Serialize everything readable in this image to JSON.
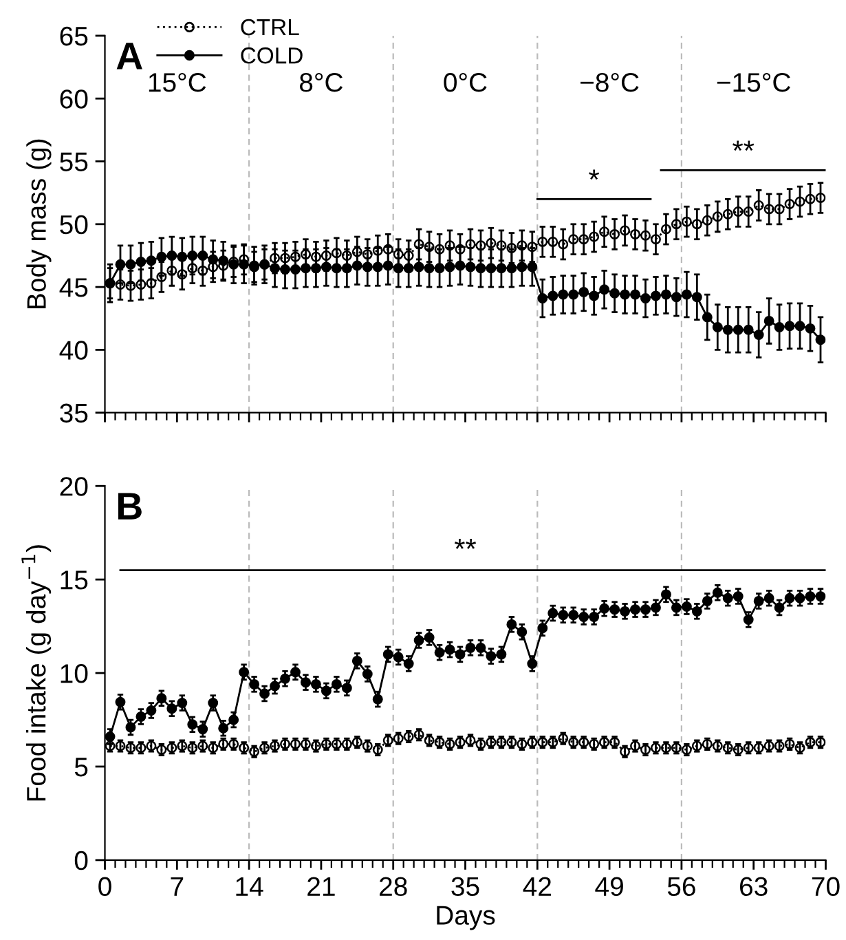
{
  "chart_data": [
    {
      "type": "line",
      "title": "A",
      "ylabel": "Body mass (g)",
      "xlim": [
        0,
        70
      ],
      "xticks": [
        0,
        7,
        14,
        21,
        28,
        35,
        42,
        49,
        56,
        63,
        70
      ],
      "ylim": [
        35,
        65
      ],
      "yticks": [
        35,
        40,
        45,
        50,
        55,
        60,
        65
      ],
      "tick_labels": "y",
      "grid": false,
      "legend": "top left",
      "x": [
        0.5,
        1.5,
        2.5,
        3.5,
        4.5,
        5.5,
        6.5,
        7.5,
        8.5,
        9.5,
        10.5,
        11.5,
        12.5,
        13.5,
        14.5,
        15.5,
        16.5,
        17.5,
        18.5,
        19.5,
        20.5,
        21.5,
        22.5,
        23.5,
        24.5,
        25.5,
        26.5,
        27.5,
        28.5,
        29.5,
        30.5,
        31.5,
        32.5,
        33.5,
        34.5,
        35.5,
        36.5,
        37.5,
        38.5,
        39.5,
        40.5,
        41.5,
        42.5,
        43.5,
        44.5,
        45.5,
        46.5,
        47.5,
        48.5,
        49.5,
        50.5,
        51.5,
        52.5,
        53.5,
        54.5,
        55.5,
        56.5,
        57.5,
        58.5,
        59.5,
        60.5,
        61.5,
        62.5,
        63.5,
        64.5,
        65.5,
        66.5,
        67.5,
        68.5,
        69.5
      ],
      "series": [
        {
          "name": "CTRL",
          "color": "#000000",
          "marker": "circle",
          "line_style": "dotted",
          "values": [
            45.3,
            45.2,
            45.1,
            45.2,
            45.3,
            45.8,
            46.3,
            46.0,
            46.5,
            46.3,
            46.6,
            46.7,
            47.0,
            47.2,
            46.6,
            46.8,
            47.3,
            47.3,
            47.4,
            47.6,
            47.4,
            47.5,
            47.7,
            47.5,
            47.8,
            47.6,
            47.9,
            48.0,
            47.6,
            47.5,
            48.4,
            48.2,
            48.0,
            48.3,
            48.0,
            48.4,
            48.3,
            48.5,
            48.3,
            48.1,
            48.3,
            48.2,
            48.6,
            48.6,
            48.4,
            48.8,
            48.8,
            49.0,
            49.4,
            49.2,
            49.5,
            49.2,
            49.1,
            48.8,
            49.6,
            50.0,
            50.2,
            50.0,
            50.3,
            50.6,
            50.8,
            51.0,
            51.0,
            51.5,
            51.2,
            51.2,
            51.6,
            51.8,
            52.0,
            52.1
          ],
          "errors": [
            1.2,
            1.2,
            1.2,
            1.2,
            1.2,
            1.2,
            1.2,
            1.2,
            1.2,
            1.2,
            1.2,
            1.2,
            1.2,
            1.2,
            1.2,
            1.2,
            1.2,
            1.2,
            1.2,
            1.2,
            1.2,
            1.2,
            1.2,
            1.2,
            1.2,
            1.2,
            1.2,
            1.2,
            1.2,
            1.2,
            1.2,
            1.2,
            1.2,
            1.2,
            1.2,
            1.2,
            1.2,
            1.2,
            1.2,
            1.2,
            1.2,
            1.2,
            1.2,
            1.2,
            1.2,
            1.2,
            1.2,
            1.2,
            1.2,
            1.2,
            1.2,
            1.2,
            1.2,
            1.2,
            1.2,
            1.2,
            1.2,
            1.2,
            1.2,
            1.2,
            1.2,
            1.2,
            1.2,
            1.2,
            1.2,
            1.2,
            1.2,
            1.2,
            1.2,
            1.2
          ]
        },
        {
          "name": "COLD",
          "color": "#000000",
          "marker": "circle",
          "line_style": "solid",
          "values": [
            45.3,
            46.8,
            46.8,
            47.0,
            47.1,
            47.4,
            47.5,
            47.4,
            47.5,
            47.5,
            47.2,
            47.1,
            46.8,
            46.8,
            46.7,
            46.8,
            46.5,
            46.4,
            46.4,
            46.5,
            46.5,
            46.6,
            46.5,
            46.5,
            46.7,
            46.6,
            46.6,
            46.7,
            46.5,
            46.5,
            46.6,
            46.5,
            46.5,
            46.6,
            46.7,
            46.6,
            46.5,
            46.5,
            46.5,
            46.5,
            46.6,
            46.6,
            44.1,
            44.3,
            44.4,
            44.4,
            44.6,
            44.3,
            44.8,
            44.5,
            44.4,
            44.4,
            44.1,
            44.3,
            44.4,
            44.2,
            44.4,
            44.2,
            42.6,
            41.8,
            41.6,
            41.6,
            41.6,
            41.2,
            42.3,
            41.8,
            41.9,
            41.9,
            41.7,
            40.8
          ],
          "errors": [
            1.5,
            1.5,
            1.5,
            1.5,
            1.5,
            1.5,
            1.5,
            1.5,
            1.5,
            1.5,
            1.5,
            1.5,
            1.5,
            1.5,
            1.5,
            1.5,
            1.5,
            1.5,
            1.5,
            1.5,
            1.5,
            1.5,
            1.5,
            1.5,
            1.5,
            1.5,
            1.5,
            1.5,
            1.5,
            1.5,
            1.5,
            1.5,
            1.5,
            1.5,
            1.5,
            1.5,
            1.5,
            1.5,
            1.5,
            1.5,
            1.5,
            1.5,
            1.5,
            1.5,
            1.5,
            1.5,
            1.5,
            1.5,
            1.5,
            1.5,
            1.5,
            1.5,
            1.5,
            1.5,
            1.5,
            1.5,
            1.8,
            1.8,
            1.8,
            1.8,
            1.8,
            1.8,
            1.8,
            1.8,
            1.8,
            1.8,
            1.8,
            1.8,
            1.8,
            1.8
          ]
        },
        {
          "type": "line",
          "color": "#000000",
          "marker": "none",
          "line_style": "solid",
          "x": [
            42,
            53
          ],
          "values": [
            52,
            52
          ]
        },
        {
          "type": "line",
          "color": "#000000",
          "marker": "none",
          "line_style": "solid",
          "x": [
            54,
            70
          ],
          "values": [
            54.3,
            54.3
          ]
        }
      ],
      "ref_lines": [
        {
          "axis": "x",
          "value": 14,
          "color": "#bbbbbb",
          "line_style": "dashed"
        },
        {
          "axis": "x",
          "value": 28,
          "color": "#bbbbbb",
          "line_style": "dashed"
        },
        {
          "axis": "x",
          "value": 42,
          "color": "#bbbbbb",
          "line_style": "dashed"
        },
        {
          "axis": "x",
          "value": 56,
          "color": "#bbbbbb",
          "line_style": "dashed"
        }
      ],
      "annotations": [
        "15°C",
        "8°C",
        "0°C",
        "−8°C",
        "−15°C",
        {
          "text": "*",
          "x": 47.5,
          "y": 52.3
        },
        {
          "text": "**",
          "x": 62,
          "y": 54.6
        }
      ]
    },
    {
      "type": "line",
      "title": "B",
      "xlabel": "Days",
      "ylabel": "Food intake (g day$^{−1}$)",
      "xlim": [
        0,
        70
      ],
      "xticks": [
        0,
        7,
        14,
        21,
        28,
        35,
        42,
        49,
        56,
        63,
        70
      ],
      "ylim": [
        0,
        20
      ],
      "yticks": [
        0,
        5,
        10,
        15,
        20
      ],
      "grid": false,
      "x": [
        0.5,
        1.5,
        2.5,
        3.5,
        4.5,
        5.5,
        6.5,
        7.5,
        8.5,
        9.5,
        10.5,
        11.5,
        12.5,
        13.5,
        14.5,
        15.5,
        16.5,
        17.5,
        18.5,
        19.5,
        20.5,
        21.5,
        22.5,
        23.5,
        24.5,
        25.5,
        26.5,
        27.5,
        28.5,
        29.5,
        30.5,
        31.5,
        32.5,
        33.5,
        34.5,
        35.5,
        36.5,
        37.5,
        38.5,
        39.5,
        40.5,
        41.5,
        42.5,
        43.5,
        44.5,
        45.5,
        46.5,
        47.5,
        48.5,
        49.5,
        50.5,
        51.5,
        52.5,
        53.5,
        54.5,
        55.5,
        56.5,
        57.5,
        58.5,
        59.5,
        60.5,
        61.5,
        62.5,
        63.5,
        64.5,
        65.5,
        66.5,
        67.5,
        68.5,
        69.5
      ],
      "series": [
        {
          "color": "#000000",
          "marker": "circle",
          "line_style": "dotted",
          "values": [
            6.1,
            6.1,
            6.0,
            6.0,
            6.1,
            5.9,
            6.0,
            6.1,
            6.0,
            6.1,
            6.0,
            6.2,
            6.2,
            6.0,
            5.8,
            6.0,
            6.1,
            6.2,
            6.2,
            6.2,
            6.1,
            6.2,
            6.2,
            6.2,
            6.3,
            6.1,
            5.9,
            6.4,
            6.5,
            6.6,
            6.7,
            6.4,
            6.3,
            6.2,
            6.3,
            6.4,
            6.2,
            6.3,
            6.3,
            6.3,
            6.2,
            6.3,
            6.3,
            6.3,
            6.5,
            6.3,
            6.3,
            6.2,
            6.3,
            6.3,
            5.8,
            6.1,
            5.9,
            6.0,
            6.0,
            6.0,
            5.9,
            6.1,
            6.2,
            6.1,
            6.0,
            5.9,
            6.0,
            6.0,
            6.1,
            6.1,
            6.2,
            6.0,
            6.3,
            6.3
          ],
          "errors": [
            0.3,
            0.3,
            0.3,
            0.3,
            0.3,
            0.3,
            0.3,
            0.3,
            0.3,
            0.3,
            0.3,
            0.3,
            0.3,
            0.3,
            0.3,
            0.3,
            0.3,
            0.3,
            0.3,
            0.3,
            0.3,
            0.3,
            0.3,
            0.3,
            0.3,
            0.3,
            0.3,
            0.3,
            0.3,
            0.3,
            0.3,
            0.3,
            0.3,
            0.3,
            0.3,
            0.3,
            0.3,
            0.3,
            0.3,
            0.3,
            0.3,
            0.3,
            0.3,
            0.3,
            0.3,
            0.3,
            0.3,
            0.3,
            0.3,
            0.3,
            0.3,
            0.3,
            0.3,
            0.3,
            0.3,
            0.3,
            0.3,
            0.3,
            0.3,
            0.3,
            0.3,
            0.3,
            0.3,
            0.3,
            0.3,
            0.3,
            0.3,
            0.3,
            0.3,
            0.3
          ]
        },
        {
          "color": "#000000",
          "marker": "circle",
          "line_style": "solid",
          "values": [
            6.6,
            8.45,
            7.1,
            7.67,
            8.0,
            8.65,
            8.1,
            8.4,
            7.25,
            7.0,
            8.4,
            7.05,
            7.5,
            10.05,
            9.4,
            8.9,
            9.3,
            9.7,
            10.05,
            9.5,
            9.4,
            9.05,
            9.4,
            9.2,
            10.65,
            9.95,
            8.6,
            11.0,
            10.85,
            10.5,
            11.75,
            11.9,
            11.1,
            11.25,
            11.0,
            11.35,
            11.35,
            10.9,
            11.0,
            12.6,
            12.2,
            10.5,
            12.4,
            13.2,
            13.1,
            13.1,
            13.0,
            13.0,
            13.45,
            13.4,
            13.3,
            13.4,
            13.4,
            13.5,
            14.2,
            13.5,
            13.55,
            13.3,
            13.85,
            14.3,
            14.0,
            14.1,
            12.85,
            13.85,
            14.0,
            13.5,
            14.0,
            14.0,
            14.1,
            14.1
          ],
          "errors": [
            0.4,
            0.4,
            0.4,
            0.4,
            0.4,
            0.4,
            0.4,
            0.4,
            0.4,
            0.4,
            0.4,
            0.4,
            0.4,
            0.4,
            0.4,
            0.4,
            0.4,
            0.4,
            0.4,
            0.4,
            0.4,
            0.4,
            0.4,
            0.4,
            0.4,
            0.4,
            0.4,
            0.4,
            0.4,
            0.4,
            0.4,
            0.4,
            0.4,
            0.4,
            0.4,
            0.4,
            0.4,
            0.4,
            0.4,
            0.4,
            0.4,
            0.4,
            0.4,
            0.4,
            0.4,
            0.4,
            0.4,
            0.4,
            0.4,
            0.4,
            0.4,
            0.4,
            0.4,
            0.4,
            0.4,
            0.4,
            0.4,
            0.4,
            0.4,
            0.4,
            0.4,
            0.4,
            0.4,
            0.4,
            0.4,
            0.4,
            0.4,
            0.4,
            0.4,
            0.4
          ]
        },
        {
          "type": "line",
          "color": "#000000",
          "marker": "none",
          "line_style": "solid",
          "x": [
            1.5,
            70
          ],
          "values": [
            15.5,
            15.5
          ]
        }
      ],
      "ref_lines": [
        {
          "axis": "x",
          "value": 14,
          "color": "#bbbbbb",
          "line_style": "dashed"
        },
        {
          "axis": "x",
          "value": 28,
          "color": "#bbbbbb",
          "line_style": "dashed"
        },
        {
          "axis": "x",
          "value": 42,
          "color": "#bbbbbb",
          "line_style": "dashed"
        },
        {
          "axis": "x",
          "value": 56,
          "color": "#bbbbbb",
          "line_style": "dashed"
        }
      ],
      "annotations": [
        {
          "text": "**",
          "x": 35,
          "y": 15.8
        }
      ]
    }
  ]
}
